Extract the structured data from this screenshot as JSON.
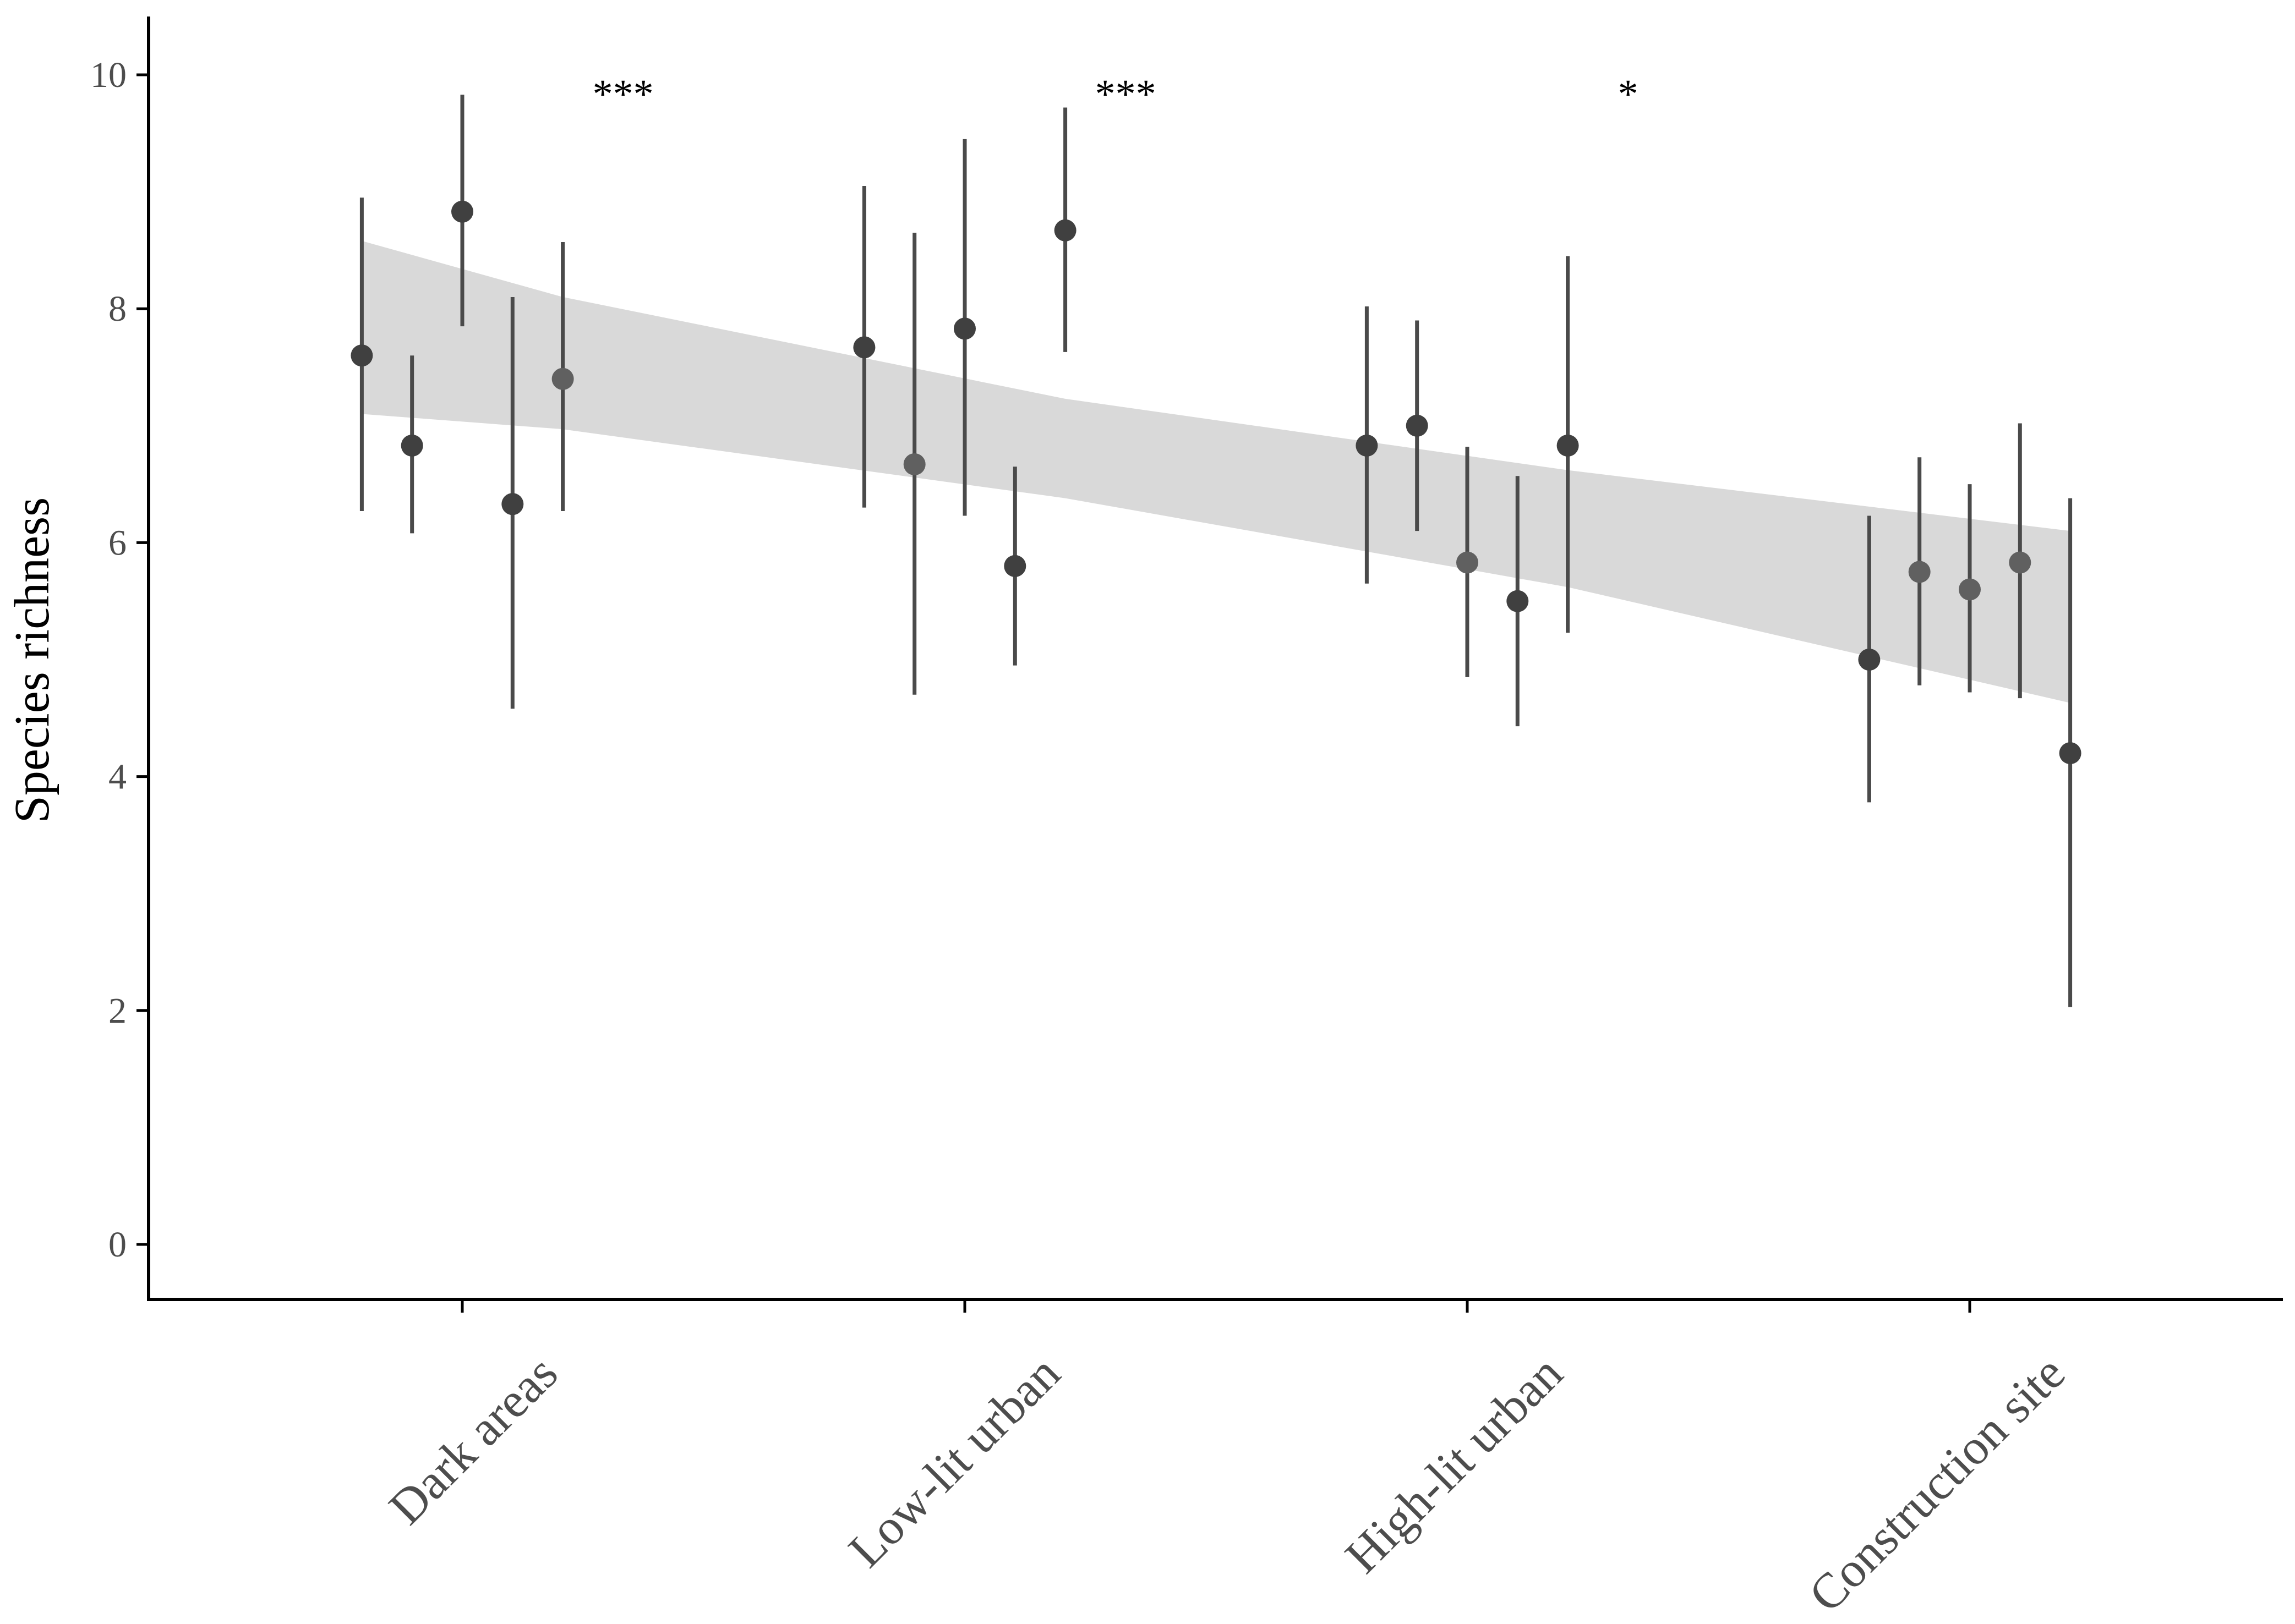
{
  "chart_data": {
    "type": "scatter",
    "title": "",
    "xlabel": "",
    "ylabel": "Species richness",
    "ylim": [
      -0.5,
      10.5
    ],
    "yticks": [
      0,
      2,
      4,
      6,
      8,
      10
    ],
    "grid": false,
    "legend": "none",
    "categories": [
      "Dark areas",
      "Low-lit urban",
      "High-lit urban",
      "Construction site"
    ],
    "significance": [
      {
        "category": "Dark areas",
        "label": "***"
      },
      {
        "category": "Low-lit urban",
        "label": "***"
      },
      {
        "category": "High-lit urban",
        "label": "*"
      }
    ],
    "points": [
      {
        "category": "Dark areas",
        "offset": -0.2,
        "mean": 7.6,
        "lower": 6.27,
        "upper": 8.95,
        "shade": "dark"
      },
      {
        "category": "Dark areas",
        "offset": -0.1,
        "mean": 6.83,
        "lower": 6.08,
        "upper": 7.6,
        "shade": "dark"
      },
      {
        "category": "Dark areas",
        "offset": 0.0,
        "mean": 8.83,
        "lower": 7.85,
        "upper": 9.83,
        "shade": "dark"
      },
      {
        "category": "Dark areas",
        "offset": 0.1,
        "mean": 6.33,
        "lower": 4.58,
        "upper": 8.1,
        "shade": "dark"
      },
      {
        "category": "Dark areas",
        "offset": 0.2,
        "mean": 7.4,
        "lower": 6.27,
        "upper": 8.57,
        "shade": "light"
      },
      {
        "category": "Low-lit urban",
        "offset": -0.2,
        "mean": 7.67,
        "lower": 6.3,
        "upper": 9.05,
        "shade": "dark"
      },
      {
        "category": "Low-lit urban",
        "offset": -0.1,
        "mean": 6.67,
        "lower": 4.7,
        "upper": 8.65,
        "shade": "light"
      },
      {
        "category": "Low-lit urban",
        "offset": 0.0,
        "mean": 7.83,
        "lower": 6.23,
        "upper": 9.45,
        "shade": "dark"
      },
      {
        "category": "Low-lit urban",
        "offset": 0.1,
        "mean": 5.8,
        "lower": 4.95,
        "upper": 6.65,
        "shade": "dark"
      },
      {
        "category": "Low-lit urban",
        "offset": 0.2,
        "mean": 8.67,
        "lower": 7.63,
        "upper": 9.72,
        "shade": "dark"
      },
      {
        "category": "High-lit urban",
        "offset": -0.2,
        "mean": 6.83,
        "lower": 5.65,
        "upper": 8.02,
        "shade": "dark"
      },
      {
        "category": "High-lit urban",
        "offset": -0.1,
        "mean": 7.0,
        "lower": 6.1,
        "upper": 7.9,
        "shade": "dark"
      },
      {
        "category": "High-lit urban",
        "offset": 0.0,
        "mean": 5.83,
        "lower": 4.85,
        "upper": 6.82,
        "shade": "light"
      },
      {
        "category": "High-lit urban",
        "offset": 0.1,
        "mean": 5.5,
        "lower": 4.43,
        "upper": 6.57,
        "shade": "dark"
      },
      {
        "category": "High-lit urban",
        "offset": 0.2,
        "mean": 6.83,
        "lower": 5.23,
        "upper": 8.45,
        "shade": "dark"
      },
      {
        "category": "Construction site",
        "offset": -0.2,
        "mean": 5.0,
        "lower": 3.78,
        "upper": 6.23,
        "shade": "dark"
      },
      {
        "category": "Construction site",
        "offset": -0.1,
        "mean": 5.75,
        "lower": 4.78,
        "upper": 6.73,
        "shade": "light"
      },
      {
        "category": "Construction site",
        "offset": 0.0,
        "mean": 5.6,
        "lower": 4.72,
        "upper": 6.5,
        "shade": "light"
      },
      {
        "category": "Construction site",
        "offset": 0.1,
        "mean": 5.83,
        "lower": 4.67,
        "upper": 7.02,
        "shade": "light"
      },
      {
        "category": "Construction site",
        "offset": 0.2,
        "mean": 4.2,
        "lower": 2.03,
        "upper": 6.38,
        "shade": "dark"
      }
    ],
    "trend_band": {
      "x_start": -0.2,
      "x_end": 3.2,
      "upper": [
        [
          -0.2,
          8.58
        ],
        [
          0.2,
          8.1
        ],
        [
          1.2,
          7.23
        ],
        [
          2.2,
          6.62
        ],
        [
          3.2,
          6.1
        ]
      ],
      "lower": [
        [
          -0.2,
          7.1
        ],
        [
          0.2,
          6.97
        ],
        [
          1.2,
          6.38
        ],
        [
          2.2,
          5.62
        ],
        [
          3.2,
          4.63
        ]
      ]
    },
    "colors": {
      "point_dark": "#404040",
      "point_light": "#606060",
      "error_bar": "#4a4a4a",
      "band": "#d9d9d9",
      "axis": "#000000",
      "tick_text": "#4d4d4d"
    }
  }
}
